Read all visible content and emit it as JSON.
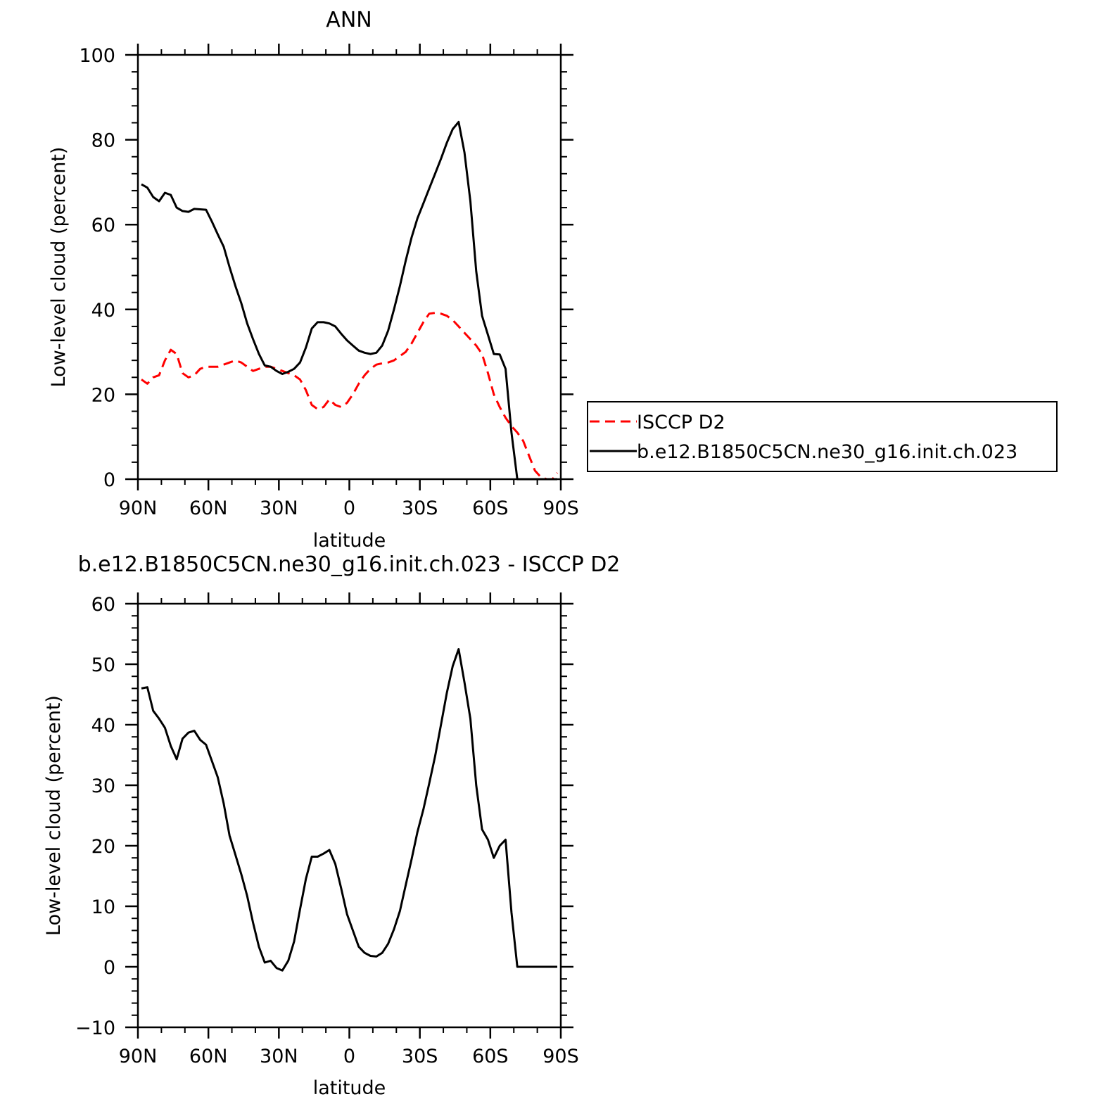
{
  "chart_data": [
    {
      "type": "line",
      "title": "ANN",
      "xlabel": "latitude",
      "ylabel": "Low-level cloud (percent)",
      "xlim": [
        90,
        -90
      ],
      "ylim": [
        0,
        100
      ],
      "xticks": [
        90,
        60,
        30,
        0,
        -30,
        -60,
        -90
      ],
      "xtick_labels": [
        "90N",
        "60N",
        "30N",
        "0",
        "30S",
        "60S",
        "90S"
      ],
      "yticks": [
        0,
        20,
        40,
        60,
        80,
        100
      ],
      "ytick_labels": [
        "0",
        "20",
        "40",
        "60",
        "80",
        "100"
      ],
      "legend_position": "right",
      "series": [
        {
          "name": "ISCCP D2",
          "color": "#ff0000",
          "dash": "dashed",
          "x": [
            88.5,
            86,
            83.5,
            81,
            78.5,
            76,
            73.5,
            71,
            68.5,
            66,
            63.5,
            61,
            58.5,
            56,
            53.5,
            51,
            48.5,
            46,
            43.5,
            41,
            38.5,
            36,
            33.5,
            31,
            28.5,
            26,
            23.5,
            21,
            18.5,
            16,
            13.5,
            11,
            8.5,
            6,
            3.5,
            1,
            -1.5,
            -4,
            -6.5,
            -9,
            -11.5,
            -14,
            -16.5,
            -19,
            -21.5,
            -24,
            -26.5,
            -29,
            -31.5,
            -34,
            -36.5,
            -39,
            -41.5,
            -44,
            -46.5,
            -49,
            -51.5,
            -54,
            -56.5,
            -59,
            -61.5,
            -64,
            -66.5,
            -69,
            -71.5,
            -74,
            -76.5,
            -79,
            -81.5,
            -84,
            -86.5,
            -88.5
          ],
          "y": [
            23.5,
            22.5,
            24.0,
            24.5,
            28.0,
            30.5,
            29.5,
            25.0,
            24.0,
            24.5,
            26.0,
            26.5,
            26.5,
            26.5,
            27.0,
            27.5,
            28.0,
            27.5,
            26.5,
            25.5,
            26.0,
            26.5,
            26.5,
            26.0,
            25.5,
            25.0,
            24.5,
            23.5,
            21.0,
            17.5,
            16.5,
            17.0,
            18.8,
            17.5,
            17.0,
            18.0,
            20.0,
            22.5,
            24.5,
            26.0,
            27.0,
            27.3,
            27.5,
            28.0,
            29.0,
            30.0,
            32.0,
            34.5,
            37.0,
            39.0,
            39.2,
            39.0,
            38.5,
            37.5,
            36.0,
            34.5,
            33.0,
            31.5,
            29.5,
            25.0,
            20.0,
            17.0,
            14.5,
            12.5,
            11.0,
            9.0,
            5.5,
            2.0,
            0.5,
            0,
            0,
            1.5
          ]
        },
        {
          "name": "b.e12.B1850C5CN.ne30_g16.init.ch.023",
          "color": "#000000",
          "dash": "solid",
          "x": [
            88.5,
            86,
            83.5,
            81,
            78.5,
            76,
            73.5,
            71,
            68.5,
            66,
            63.5,
            61,
            58.5,
            56,
            53.5,
            51,
            48.5,
            46,
            43.5,
            41,
            38.5,
            36,
            33.5,
            31,
            28.5,
            26,
            23.5,
            21,
            18.5,
            16,
            13.5,
            11,
            8.5,
            6,
            3.5,
            1,
            -1.5,
            -4,
            -6.5,
            -9,
            -11.5,
            -14,
            -16.5,
            -19,
            -21.5,
            -24,
            -26.5,
            -29,
            -31.5,
            -34,
            -36.5,
            -39,
            -41.5,
            -44,
            -46.5,
            -49,
            -51.5,
            -54,
            -56.5,
            -59,
            -61.5,
            -64,
            -66.5,
            -69,
            -71.5,
            -74,
            -76.5,
            -79,
            -81.5,
            -84,
            -86.5,
            -88.5
          ],
          "y": [
            69.5,
            68.7,
            66.5,
            65.5,
            67.5,
            67.0,
            64.0,
            63.2,
            63.0,
            63.7,
            63.6,
            63.5,
            60.7,
            57.7,
            54.8,
            50.0,
            45.5,
            41.5,
            36.7,
            33.0,
            29.5,
            26.8,
            26.5,
            25.5,
            24.8,
            25.3,
            26.0,
            27.5,
            31.0,
            35.5,
            37.0,
            37.0,
            36.7,
            36.0,
            34.3,
            32.7,
            31.5,
            30.3,
            29.8,
            29.5,
            29.8,
            31.5,
            35.0,
            40.0,
            45.5,
            51.5,
            57.0,
            61.5,
            65.0,
            68.5,
            72.0,
            75.5,
            79.3,
            82.5,
            84.2,
            77.0,
            65.5,
            49.0,
            38.5,
            34.0,
            29.5,
            29.4,
            26.0,
            11.0,
            0,
            0,
            0,
            0,
            0,
            0,
            0,
            0
          ],
          "x_trimmed_note": ""
        }
      ]
    },
    {
      "type": "line",
      "title": "b.e12.B1850C5CN.ne30_g16.init.ch.023 - ISCCP D2",
      "xlabel": "latitude",
      "ylabel": "Low-level cloud (percent)",
      "xlim": [
        90,
        -90
      ],
      "ylim": [
        -10,
        60
      ],
      "xticks": [
        90,
        60,
        30,
        0,
        -30,
        -60,
        -90
      ],
      "xtick_labels": [
        "90N",
        "60N",
        "30N",
        "0",
        "30S",
        "60S",
        "90S"
      ],
      "yticks": [
        -10,
        0,
        10,
        20,
        30,
        40,
        50,
        60
      ],
      "ytick_labels": [
        "−10",
        "0",
        "10",
        "20",
        "30",
        "40",
        "50",
        "60"
      ],
      "series": [
        {
          "color": "#000000",
          "dash": "solid",
          "x": [
            88.5,
            86,
            83.5,
            81,
            78.5,
            76,
            73.5,
            71,
            68.5,
            66,
            63.5,
            61,
            58.5,
            56,
            53.5,
            51,
            48.5,
            46,
            43.5,
            41,
            38.5,
            36,
            33.5,
            31,
            28.5,
            26,
            23.5,
            21,
            18.5,
            16,
            13.5,
            11,
            8.5,
            6,
            3.5,
            1,
            -1.5,
            -4,
            -6.5,
            -9,
            -11.5,
            -14,
            -16.5,
            -19,
            -21.5,
            -24,
            -26.5,
            -29,
            -31.5,
            -34,
            -36.5,
            -39,
            -41.5,
            -44,
            -46.5,
            -49,
            -51.5,
            -54,
            -56.5,
            -59,
            -61.5,
            -64,
            -66.5,
            -69,
            -71.5,
            -74,
            -76.5,
            -79,
            -81.5,
            -84,
            -86.5,
            -88.5
          ],
          "y": [
            46.0,
            46.2,
            42.3,
            41.0,
            39.5,
            36.5,
            34.3,
            37.7,
            38.7,
            39.0,
            37.5,
            36.7,
            34.0,
            31.3,
            27.0,
            21.7,
            18.5,
            15.3,
            11.7,
            7.3,
            3.3,
            0.7,
            1.0,
            -0.2,
            -0.6,
            1.0,
            4.2,
            9.5,
            14.5,
            18.2,
            18.2,
            18.7,
            19.3,
            17.0,
            13.0,
            8.7,
            6.0,
            3.3,
            2.3,
            1.8,
            1.7,
            2.3,
            3.8,
            6.2,
            9.2,
            13.5,
            17.8,
            22.3,
            26.0,
            30.3,
            34.8,
            40.0,
            45.3,
            49.7,
            52.5,
            47.0,
            41.0,
            30.0,
            22.7,
            21.0,
            18.0,
            20.0,
            21.0,
            9.0,
            0,
            0,
            0,
            0,
            0,
            0,
            0,
            0
          ]
        }
      ]
    }
  ]
}
